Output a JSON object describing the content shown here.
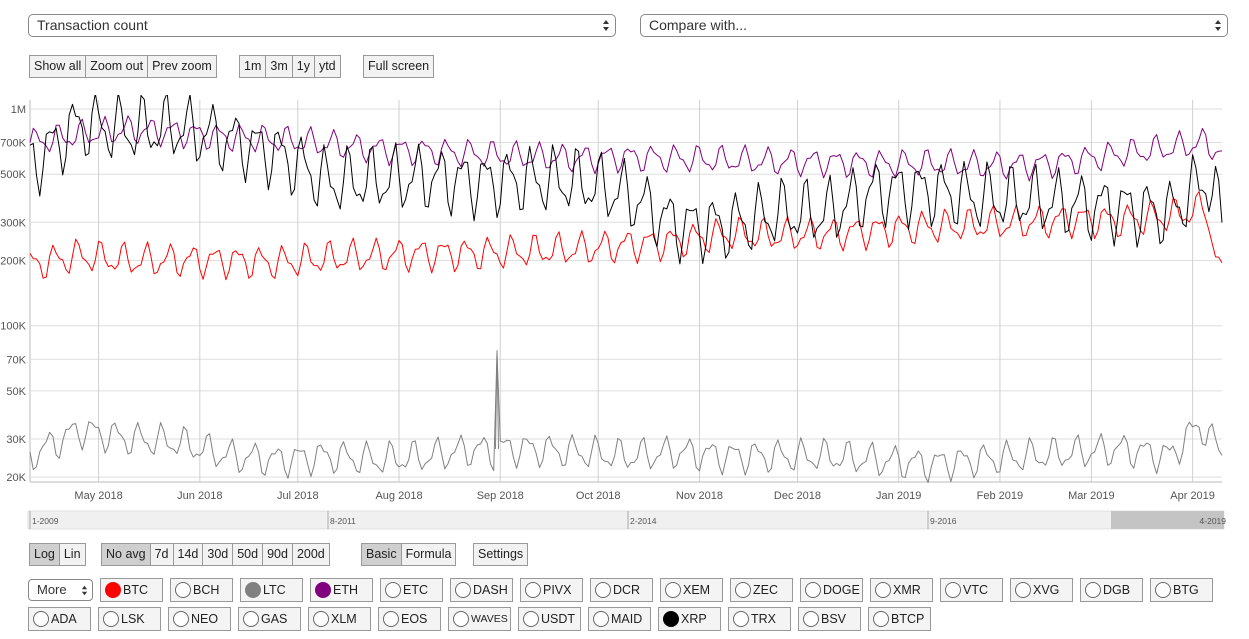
{
  "metric_select": {
    "value": "Transaction count"
  },
  "compare_select": {
    "placeholder": "Compare with..."
  },
  "zoom_buttons": [
    "Show all",
    "Zoom out",
    "Prev zoom"
  ],
  "range_buttons": [
    "1m",
    "3m",
    "1y",
    "ytd"
  ],
  "fullscreen_button": "Full screen",
  "scale_buttons": [
    "Log",
    "Lin"
  ],
  "avg_buttons": [
    "No avg",
    "7d",
    "14d",
    "30d",
    "50d",
    "90d",
    "200d"
  ],
  "mode_buttons": [
    "Basic",
    "Formula"
  ],
  "settings_button": "Settings",
  "more_select": "More",
  "coins_row1": [
    {
      "label": "BTC",
      "color": "#ff0000",
      "checked": true
    },
    {
      "label": "BCH",
      "color": "",
      "checked": false
    },
    {
      "label": "LTC",
      "color": "#808080",
      "checked": true
    },
    {
      "label": "ETH",
      "color": "#800080",
      "checked": true
    },
    {
      "label": "ETC",
      "color": "",
      "checked": false
    },
    {
      "label": "DASH",
      "color": "",
      "checked": false
    },
    {
      "label": "PIVX",
      "color": "",
      "checked": false
    },
    {
      "label": "DCR",
      "color": "",
      "checked": false
    },
    {
      "label": "XEM",
      "color": "",
      "checked": false
    },
    {
      "label": "ZEC",
      "color": "",
      "checked": false
    },
    {
      "label": "DOGE",
      "color": "",
      "checked": false
    },
    {
      "label": "XMR",
      "color": "",
      "checked": false
    },
    {
      "label": "VTC",
      "color": "",
      "checked": false
    },
    {
      "label": "XVG",
      "color": "",
      "checked": false
    },
    {
      "label": "DGB",
      "color": "",
      "checked": false
    },
    {
      "label": "BTG",
      "color": "",
      "checked": false
    }
  ],
  "coins_row2": [
    {
      "label": "ADA",
      "color": "",
      "checked": false
    },
    {
      "label": "LSK",
      "color": "",
      "checked": false
    },
    {
      "label": "NEO",
      "color": "",
      "checked": false
    },
    {
      "label": "GAS",
      "color": "",
      "checked": false
    },
    {
      "label": "XLM",
      "color": "",
      "checked": false
    },
    {
      "label": "EOS",
      "color": "",
      "checked": false
    },
    {
      "label": "WAVES",
      "color": "",
      "checked": false
    },
    {
      "label": "USDT",
      "color": "",
      "checked": false
    },
    {
      "label": "MAID",
      "color": "",
      "checked": false
    },
    {
      "label": "XRP",
      "color": "#000000",
      "checked": true
    },
    {
      "label": "TRX",
      "color": "",
      "checked": false
    },
    {
      "label": "BSV",
      "color": "",
      "checked": false
    },
    {
      "label": "BTCP",
      "color": "",
      "checked": false
    }
  ],
  "navigator_labels": [
    "1-2009",
    "8-2011",
    "2-2014",
    "9-2016",
    "4-2019"
  ],
  "chart_data": {
    "type": "line",
    "yscale": "log",
    "ylim": [
      19000,
      1100000
    ],
    "xlim": [
      "2018-04-10",
      "2019-04-10"
    ],
    "y_ticks": [
      {
        "value": 1000000,
        "label": "1M"
      },
      {
        "value": 700000,
        "label": "700K"
      },
      {
        "value": 500000,
        "label": "500K"
      },
      {
        "value": 300000,
        "label": "300K"
      },
      {
        "value": 200000,
        "label": "200K"
      },
      {
        "value": 100000,
        "label": "100K"
      },
      {
        "value": 70000,
        "label": "70K"
      },
      {
        "value": 50000,
        "label": "50K"
      },
      {
        "value": 30000,
        "label": "30K"
      },
      {
        "value": 20000,
        "label": "20K"
      }
    ],
    "x_ticks": [
      {
        "date": "2018-05-01",
        "label": "May 2018"
      },
      {
        "date": "2018-06-01",
        "label": "Jun 2018"
      },
      {
        "date": "2018-07-01",
        "label": "Jul 2018"
      },
      {
        "date": "2018-08-01",
        "label": "Aug 2018"
      },
      {
        "date": "2018-09-01",
        "label": "Sep 2018"
      },
      {
        "date": "2018-10-01",
        "label": "Oct 2018"
      },
      {
        "date": "2018-11-01",
        "label": "Nov 2018"
      },
      {
        "date": "2018-12-01",
        "label": "Dec 2018"
      },
      {
        "date": "2019-01-01",
        "label": "Jan 2019"
      },
      {
        "date": "2019-02-01",
        "label": "Feb 2019"
      },
      {
        "date": "2019-03-01",
        "label": "Mar 2019"
      },
      {
        "date": "2019-04-01",
        "label": "Apr 2019"
      }
    ],
    "series": [
      {
        "name": "ETH",
        "color": "#800080",
        "dates": [
          "2018-04-10",
          "2018-04-25",
          "2018-05-10",
          "2018-05-25",
          "2018-06-10",
          "2018-06-25",
          "2018-07-10",
          "2018-07-25",
          "2018-08-10",
          "2018-08-25",
          "2018-09-10",
          "2018-09-25",
          "2018-10-10",
          "2018-10-25",
          "2018-11-10",
          "2018-11-25",
          "2018-12-10",
          "2018-12-25",
          "2019-01-10",
          "2019-01-25",
          "2019-02-10",
          "2019-02-25",
          "2019-03-10",
          "2019-03-25",
          "2019-04-05",
          "2019-04-10"
        ],
        "values": [
          700000,
          760000,
          800000,
          780000,
          740000,
          720000,
          690000,
          650000,
          640000,
          620000,
          600000,
          590000,
          600000,
          590000,
          580000,
          570000,
          570000,
          560000,
          560000,
          550000,
          550000,
          580000,
          620000,
          660000,
          700000,
          620000
        ]
      },
      {
        "name": "BTC",
        "color": "#ff0000",
        "dates": [
          "2018-04-10",
          "2018-04-25",
          "2018-05-10",
          "2018-05-25",
          "2018-06-10",
          "2018-06-25",
          "2018-07-10",
          "2018-07-25",
          "2018-08-10",
          "2018-08-25",
          "2018-09-10",
          "2018-09-25",
          "2018-10-10",
          "2018-10-25",
          "2018-11-10",
          "2018-11-25",
          "2018-12-10",
          "2018-12-25",
          "2019-01-10",
          "2019-01-25",
          "2019-02-10",
          "2019-02-25",
          "2019-03-10",
          "2019-03-25",
          "2019-04-05",
          "2019-04-10"
        ],
        "values": [
          190000,
          210000,
          200000,
          200000,
          200000,
          195000,
          205000,
          210000,
          215000,
          215000,
          220000,
          225000,
          235000,
          245000,
          265000,
          260000,
          265000,
          275000,
          285000,
          290000,
          300000,
          310000,
          305000,
          320000,
          350000,
          160000
        ]
      },
      {
        "name": "XRP",
        "color": "#000000",
        "dates": [
          "2018-04-10",
          "2018-04-25",
          "2018-05-10",
          "2018-05-25",
          "2018-06-10",
          "2018-06-25",
          "2018-07-10",
          "2018-07-25",
          "2018-08-10",
          "2018-08-25",
          "2018-09-10",
          "2018-09-25",
          "2018-10-10",
          "2018-10-25",
          "2018-11-10",
          "2018-11-25",
          "2018-12-10",
          "2018-12-25",
          "2019-01-10",
          "2019-01-25",
          "2019-02-10",
          "2019-02-25",
          "2019-03-10",
          "2019-03-25",
          "2019-04-05",
          "2019-04-10"
        ],
        "values": [
          550000,
          850000,
          800000,
          820000,
          720000,
          620000,
          460000,
          470000,
          480000,
          460000,
          470000,
          460000,
          400000,
          290000,
          290000,
          330000,
          330000,
          420000,
          420000,
          390000,
          380000,
          360000,
          350000,
          330000,
          480000,
          320000
        ]
      },
      {
        "name": "LTC",
        "color": "#808080",
        "dates": [
          "2018-04-10",
          "2018-04-25",
          "2018-05-10",
          "2018-05-25",
          "2018-06-10",
          "2018-06-25",
          "2018-07-10",
          "2018-07-25",
          "2018-08-10",
          "2018-08-25",
          "2018-08-30",
          "2018-08-31",
          "2018-09-01",
          "2018-09-10",
          "2018-09-25",
          "2018-10-10",
          "2018-10-25",
          "2018-11-10",
          "2018-11-25",
          "2018-12-10",
          "2018-12-25",
          "2019-01-10",
          "2019-01-25",
          "2019-02-10",
          "2019-02-25",
          "2019-03-10",
          "2019-03-25",
          "2019-04-03",
          "2019-04-10"
        ],
        "values": [
          25000,
          33000,
          30000,
          29000,
          25000,
          24000,
          25000,
          24000,
          25000,
          27000,
          26000,
          77000,
          27000,
          27000,
          26000,
          25000,
          26000,
          25000,
          25000,
          25000,
          24000,
          23000,
          24000,
          25000,
          26000,
          27000,
          25000,
          35000,
          26000
        ]
      }
    ]
  }
}
